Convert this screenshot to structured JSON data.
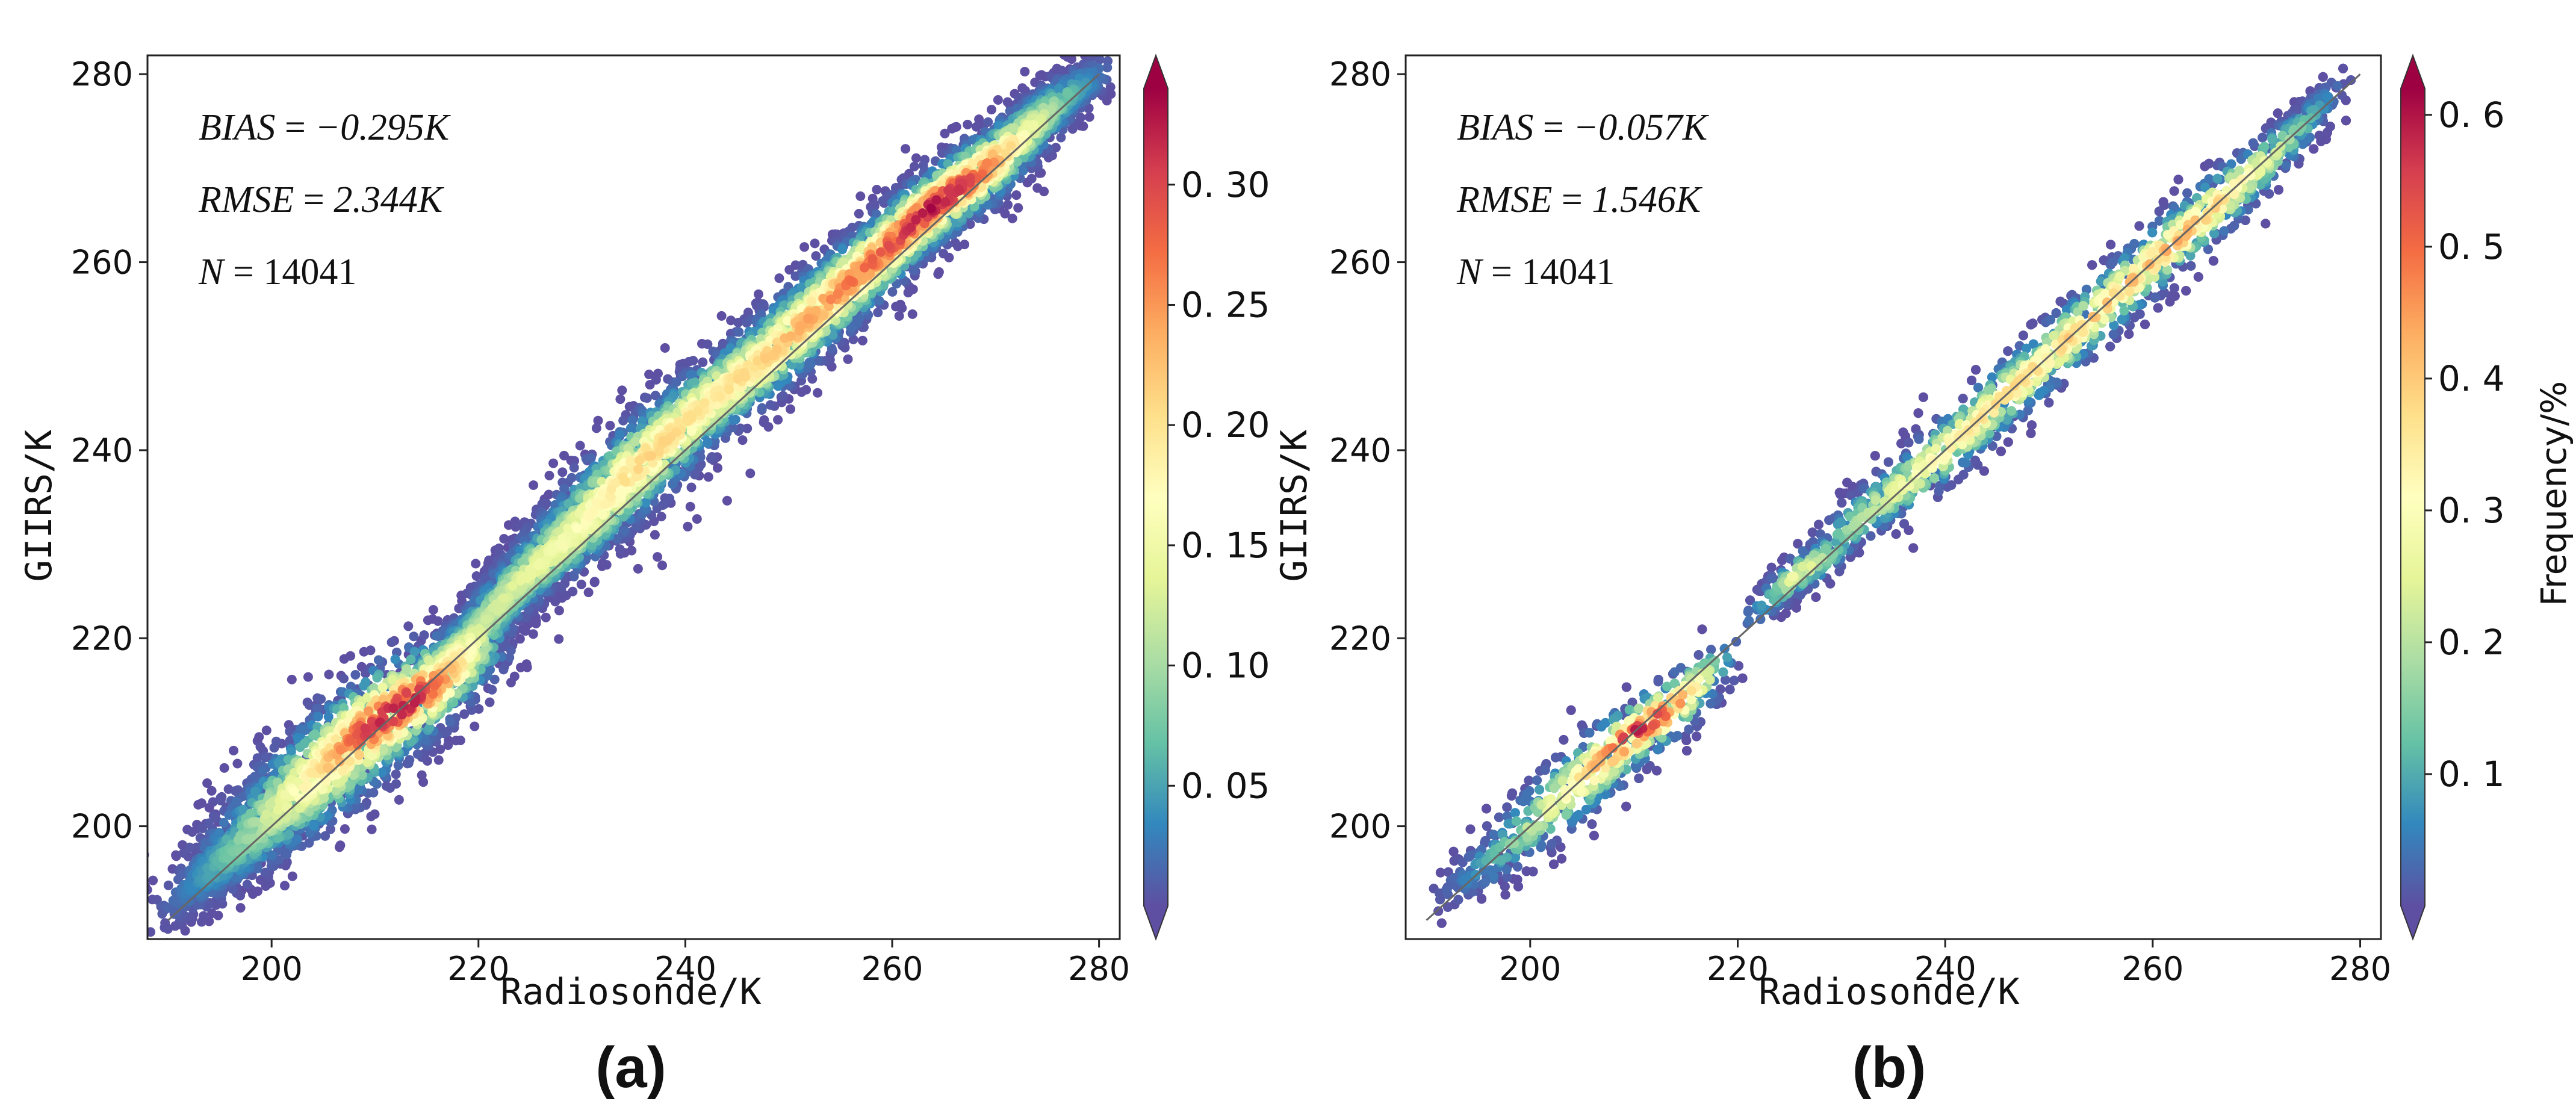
{
  "chart_data": [
    {
      "type": "scatter",
      "panel_label": "(a)",
      "xlabel": "Radiosonde/K",
      "ylabel": "GIIRS/K",
      "xlim": [
        188,
        282
      ],
      "ylim": [
        188,
        282
      ],
      "xticks": [
        200,
        220,
        240,
        260,
        280
      ],
      "yticks": [
        200,
        220,
        240,
        260,
        280
      ],
      "stats": [
        {
          "name": "BIAS",
          "value": "−0.295K"
        },
        {
          "name": "RMSE",
          "value": "2.344K"
        },
        {
          "name": "N",
          "value": "14041"
        }
      ],
      "reference_line": {
        "x": [
          190,
          280
        ],
        "y": [
          190,
          280
        ]
      },
      "density_ridge": {
        "x": [
          192,
          200,
          206,
          210,
          213,
          216,
          220,
          224,
          230,
          236,
          242,
          248,
          254,
          260,
          264,
          268,
          272,
          276,
          279
        ],
        "y": [
          193,
          201,
          207,
          211,
          213,
          215,
          221,
          226,
          232,
          239,
          245,
          250,
          256,
          262,
          266,
          269,
          273,
          277,
          279
        ],
        "density": [
          0.02,
          0.12,
          0.22,
          0.32,
          0.34,
          0.26,
          0.12,
          0.14,
          0.17,
          0.22,
          0.2,
          0.22,
          0.26,
          0.3,
          0.34,
          0.3,
          0.18,
          0.08,
          0.03
        ],
        "spread": [
          2.5,
          4.5,
          5.5,
          5.0,
          4.5,
          4.0,
          2.5,
          3.0,
          4.0,
          4.5,
          4.0,
          4.0,
          4.0,
          3.5,
          3.5,
          3.5,
          3.0,
          2.5,
          2.0
        ]
      },
      "colorbar": {
        "min": 0,
        "max": 0.34,
        "ticks": [
          0.05,
          0.1,
          0.15,
          0.2,
          0.25,
          0.3
        ],
        "tick_labels": [
          "0. 05",
          "0. 10",
          "0. 15",
          "0. 20",
          "0. 25",
          "0. 30"
        ],
        "label": ""
      }
    },
    {
      "type": "scatter",
      "panel_label": "(b)",
      "xlabel": "Radiosonde/K",
      "ylabel": "GIIRS/K",
      "xlim": [
        188,
        282
      ],
      "ylim": [
        188,
        282
      ],
      "xticks": [
        200,
        220,
        240,
        260,
        280
      ],
      "yticks": [
        200,
        220,
        240,
        260,
        280
      ],
      "stats": [
        {
          "name": "BIAS",
          "value": "−0.057K"
        },
        {
          "name": "RMSE",
          "value": "1.546K"
        },
        {
          "name": "N",
          "value": "14041"
        }
      ],
      "reference_line": {
        "x": [
          190,
          280
        ],
        "y": [
          190,
          280
        ]
      },
      "density_ridge": {
        "x": [
          193,
          198,
          203,
          207,
          210,
          213,
          216,
          218,
          223,
          226,
          229,
          232,
          238,
          244,
          250,
          256,
          262,
          266,
          270,
          274,
          277
        ],
        "y": [
          194,
          198,
          203,
          207,
          210,
          212,
          215,
          218,
          224,
          227,
          229,
          233,
          238,
          244,
          250,
          256,
          262,
          266,
          270,
          274,
          278
        ],
        "density": [
          0.02,
          0.15,
          0.3,
          0.45,
          0.6,
          0.55,
          0.3,
          0.06,
          0.1,
          0.3,
          0.15,
          0.2,
          0.33,
          0.38,
          0.4,
          0.42,
          0.45,
          0.4,
          0.3,
          0.15,
          0.04
        ],
        "spread": [
          2.0,
          3.0,
          3.5,
          3.5,
          3.0,
          3.0,
          2.5,
          1.5,
          1.5,
          2.0,
          2.0,
          2.5,
          3.0,
          3.0,
          3.0,
          3.0,
          3.0,
          3.0,
          2.5,
          2.0,
          1.5
        ]
      },
      "colorbar": {
        "min": 0,
        "max": 0.62,
        "ticks": [
          0.1,
          0.2,
          0.3,
          0.4,
          0.5,
          0.6
        ],
        "tick_labels": [
          "0. 1",
          "0. 2",
          "0. 3",
          "0. 4",
          "0. 5",
          "0. 6"
        ],
        "label": "Frequency/%"
      }
    }
  ],
  "colormap": [
    "#5e4fa2",
    "#3288bd",
    "#66c2a5",
    "#abdda4",
    "#e6f598",
    "#ffffbf",
    "#fee08b",
    "#fdae61",
    "#f46d43",
    "#d53e4f",
    "#9e0142"
  ]
}
